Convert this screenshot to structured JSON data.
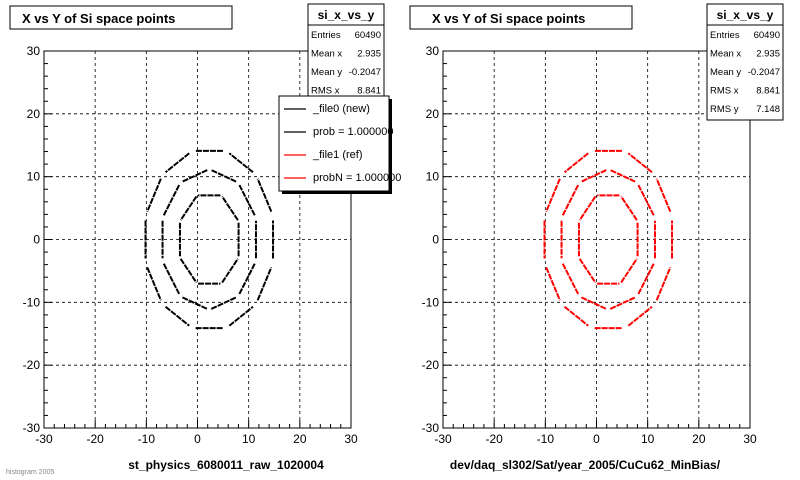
{
  "chart_data": [
    {
      "type": "scatter",
      "title": "X vs Y of Si space points",
      "xlabel": "st_physics_6080011_raw_1020004",
      "ylabel": "",
      "xlim": [
        -30,
        30
      ],
      "ylim": [
        -30,
        30
      ],
      "xticks": [
        -30,
        -20,
        -10,
        0,
        10,
        20,
        30
      ],
      "yticks": [
        -30,
        -20,
        -10,
        0,
        10,
        20,
        30
      ],
      "grid": true,
      "marker_color": "#000000",
      "stats": {
        "name": "si_x_vs_y",
        "rows": [
          {
            "label": "Entries",
            "value": "60490"
          },
          {
            "label": "Mean x",
            "value": "2.935"
          },
          {
            "label": "Mean y",
            "value": "-0.2047"
          },
          {
            "label": "RMS x",
            "value": "8.841"
          }
        ]
      },
      "legend": {
        "placement": "top-right",
        "entries": [
          {
            "label": "_file0 (new)",
            "color": "#000000"
          },
          {
            "label": "prob = 1.000000",
            "color": "#000000"
          },
          {
            "label": "_file1 (ref)",
            "color": "#ff0000"
          },
          {
            "label": "probN = 1.000000",
            "color": "#ff0000"
          }
        ]
      },
      "footer_text": "histogram 2005"
    },
    {
      "type": "scatter",
      "title": "X vs Y of Si space points",
      "xlabel": "dev/daq_sl302/Sat/year_2005/CuCu62_MinBias/",
      "ylabel": "",
      "xlim": [
        -30,
        30
      ],
      "ylim": [
        -30,
        30
      ],
      "xticks": [
        -30,
        -20,
        -10,
        0,
        10,
        20,
        30
      ],
      "yticks": [
        -30,
        -20,
        -10,
        0,
        10,
        20,
        30
      ],
      "grid": true,
      "marker_color": "#ff0000",
      "stats": {
        "name": "si_x_vs_y",
        "rows": [
          {
            "label": "Entries",
            "value": "60490"
          },
          {
            "label": "Mean x",
            "value": "2.935"
          },
          {
            "label": "Mean y",
            "value": "-0.2047"
          },
          {
            "label": "RMS x",
            "value": "8.841"
          },
          {
            "label": "RMS y",
            "value": "7.148"
          }
        ]
      }
    }
  ],
  "detector_geometry": {
    "center": [
      2.3,
      0
    ],
    "layers": [
      {
        "n": 8,
        "a": 6.2,
        "b": 7.6,
        "rot": 22.5,
        "frac": 0.92
      },
      {
        "n": 10,
        "a": 9.6,
        "b": 11.2,
        "rot": 18,
        "frac": 0.86
      },
      {
        "n": 12,
        "a": 12.9,
        "b": 14.6,
        "rot": 15,
        "frac": 0.8
      }
    ]
  }
}
